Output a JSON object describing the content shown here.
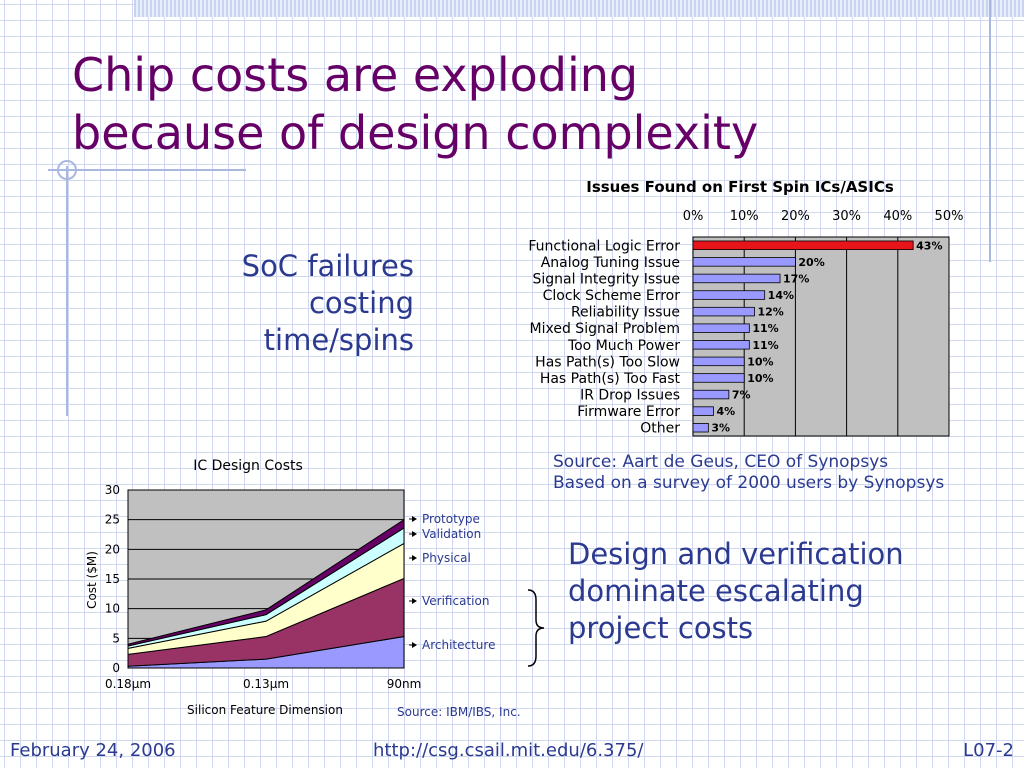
{
  "slide": {
    "title_line1": "Chip costs are exploding",
    "title_line2": "because of design complexity",
    "soc_note": [
      "SoC failures",
      "costing",
      "time/spins"
    ],
    "design_note": [
      "Design and verification",
      "dominate escalating",
      "project costs"
    ],
    "source1_line1": "Source: Aart de Geus, CEO of Synopsys",
    "source1_line2": "Based on a survey of 2000 users by Synopsys",
    "source2": "Source: IBM/IBS, Inc.",
    "footer_date": "February 24, 2006",
    "footer_url": "http://csg.csail.mit.edu/6.375/",
    "footer_page": "L07-2"
  },
  "colors": {
    "title": "#660066",
    "body_text": "#2b3a8f",
    "highlight_bar": "#e8141b",
    "bar": "#9999ff",
    "plot_bg": "#c0c0c0"
  },
  "chart_data": [
    {
      "type": "bar",
      "orientation": "horizontal",
      "title": "Issues Found on First Spin ICs/ASICs",
      "categories": [
        "Functional Logic Error",
        "Analog Tuning Issue",
        "Signal Integrity Issue",
        "Clock Scheme Error",
        "Reliability Issue",
        "Mixed Signal Problem",
        "Too Much Power",
        "Has Path(s) Too Slow",
        "Has Path(s) Too Fast",
        "IR Drop Issues",
        "Firmware Error",
        "Other"
      ],
      "values": [
        43,
        20,
        17,
        14,
        12,
        11,
        11,
        10,
        10,
        7,
        4,
        3
      ],
      "value_labels": [
        "43%",
        "20%",
        "17%",
        "14%",
        "12%",
        "11%",
        "11%",
        "10%",
        "10%",
        "7%",
        "4%",
        "3%"
      ],
      "xlim": [
        0,
        50
      ],
      "x_ticks": [
        "0%",
        "10%",
        "20%",
        "30%",
        "40%",
        "50%"
      ],
      "x_axis_position": "top",
      "grid": true,
      "highlighted_category": "Functional Logic Error"
    },
    {
      "type": "area",
      "stacked": true,
      "title": "IC Design Costs",
      "xlabel": "Silicon Feature Dimension",
      "ylabel": "Cost ($M)",
      "categories": [
        "0.18µm",
        "0.13µm",
        "90nm"
      ],
      "ylim": [
        0,
        30
      ],
      "y_ticks": [
        "0",
        "5",
        "10",
        "15",
        "20",
        "25",
        "30"
      ],
      "grid": true,
      "series": [
        {
          "name": "Architecture",
          "values": [
            0.3,
            1.5,
            5.3
          ],
          "color": "#9999ff"
        },
        {
          "name": "Verification",
          "values": [
            2.0,
            3.8,
            9.8
          ],
          "color": "#993366"
        },
        {
          "name": "Physical",
          "values": [
            1.0,
            2.6,
            5.9
          ],
          "color": "#ffffcc"
        },
        {
          "name": "Validation",
          "values": [
            0.4,
            1.1,
            2.6
          ],
          "color": "#ccffff"
        },
        {
          "name": "Prototype",
          "values": [
            0.3,
            0.8,
            1.4
          ],
          "color": "#660066"
        }
      ],
      "legend_placement": "right"
    }
  ]
}
